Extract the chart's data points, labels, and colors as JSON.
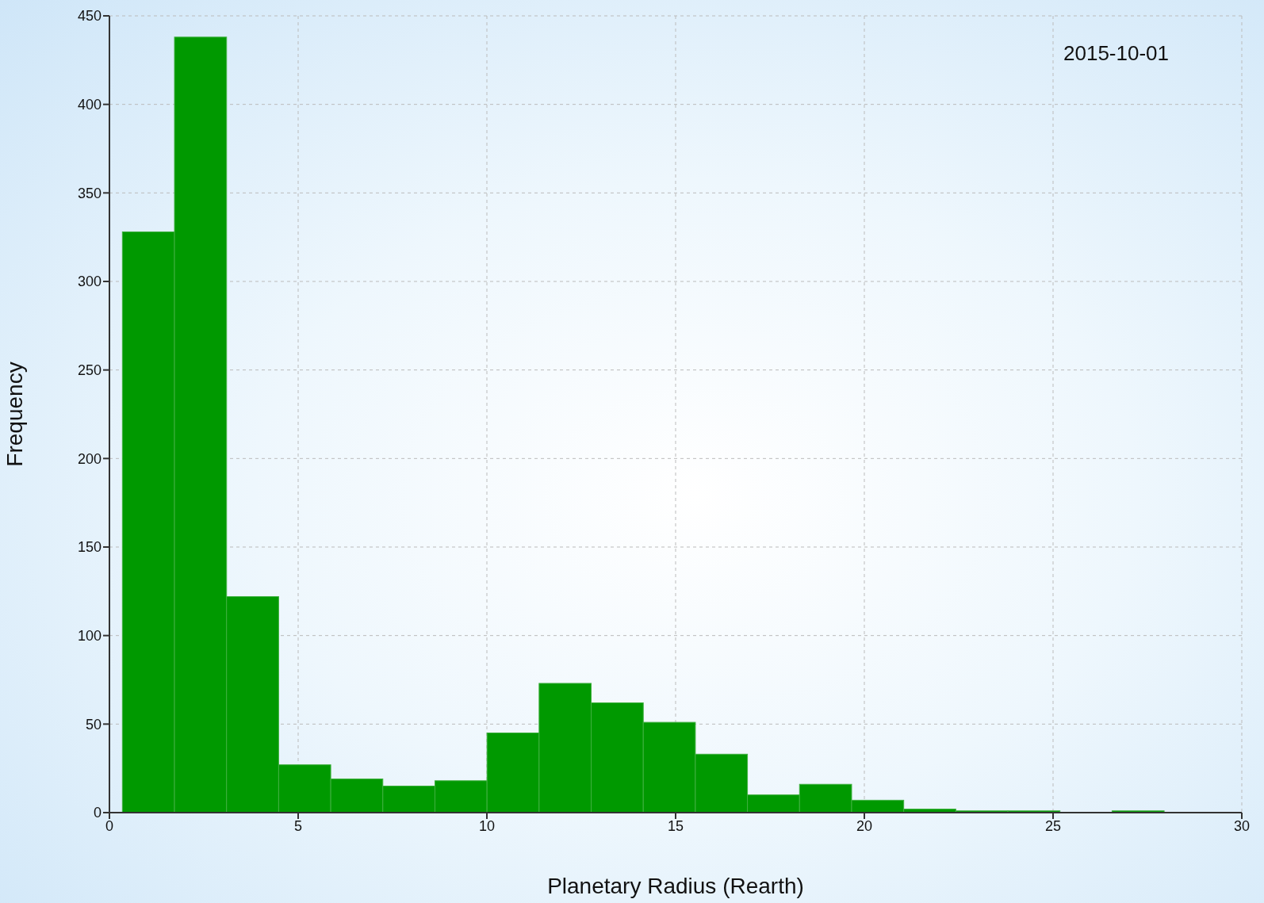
{
  "chart_data": {
    "type": "histogram",
    "bins": [
      0.34,
      1.72,
      3.1,
      4.48,
      5.86,
      7.24,
      8.62,
      10.0,
      11.38,
      12.76,
      14.14,
      15.52,
      16.9,
      18.28,
      19.66,
      21.04,
      22.42,
      23.8,
      25.18,
      26.56,
      27.94
    ],
    "values": [
      328,
      438,
      122,
      27,
      19,
      15,
      18,
      45,
      73,
      62,
      51,
      33,
      10,
      16,
      7,
      2,
      1,
      1,
      0,
      1
    ],
    "color": "#009900",
    "xlabel": "Planetary Radius (Rearth)",
    "ylabel": "Frequency",
    "xlim": [
      0,
      30
    ],
    "xticks": [
      0,
      5,
      10,
      15,
      20,
      25,
      30
    ],
    "ylim": [
      0,
      450
    ],
    "yticks": [
      0,
      50,
      100,
      150,
      200,
      250,
      300,
      350,
      400,
      450
    ],
    "grid": true,
    "annotations": [
      "2015-10-01"
    ]
  }
}
